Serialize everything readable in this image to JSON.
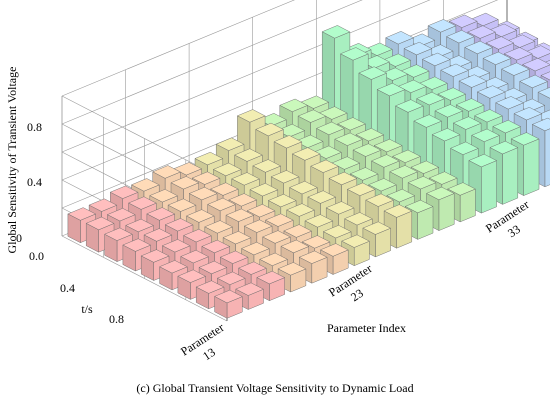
{
  "chart_data": {
    "type": "bar3d",
    "zlabel": "Global Sensitivity of Transient Voltage",
    "xlabel": "Parameter Index",
    "ylabel": "t/s",
    "z_ticks": [
      "0",
      "0.4",
      "0.8"
    ],
    "zlim": [
      0,
      1.0
    ],
    "y_ticks": [
      "0.0",
      "0.4",
      "0.8"
    ],
    "x_ticks": [
      {
        "line1": "Parameter",
        "line2": "13"
      },
      {
        "line1": "Parameter",
        "line2": "23"
      },
      {
        "line1": "Parameter",
        "line2": "33"
      }
    ],
    "parameter_count": 21,
    "time_count": 9,
    "group_colors": [
      "#f7b3b3",
      "#f3cfae",
      "#e4e0a8",
      "#bfeab0",
      "#a8efc0",
      "#b8d8f4",
      "#c6c0f6"
    ],
    "values": [
      [
        0.16,
        0.16,
        0.15,
        0.14,
        0.13,
        0.12,
        0.12,
        0.11,
        0.11
      ],
      [
        0.16,
        0.16,
        0.15,
        0.15,
        0.14,
        0.13,
        0.12,
        0.11,
        0.1
      ],
      [
        0.19,
        0.18,
        0.17,
        0.16,
        0.15,
        0.14,
        0.13,
        0.12,
        0.12
      ],
      [
        0.18,
        0.17,
        0.17,
        0.16,
        0.15,
        0.14,
        0.13,
        0.12,
        0.12
      ],
      [
        0.21,
        0.2,
        0.19,
        0.18,
        0.17,
        0.16,
        0.15,
        0.15,
        0.14
      ],
      [
        0.17,
        0.17,
        0.16,
        0.15,
        0.14,
        0.14,
        0.13,
        0.12,
        0.13
      ],
      [
        0.18,
        0.17,
        0.17,
        0.16,
        0.15,
        0.15,
        0.14,
        0.13,
        0.13
      ],
      [
        0.22,
        0.21,
        0.2,
        0.19,
        0.18,
        0.18,
        0.17,
        0.16,
        0.16
      ],
      [
        0.36,
        0.33,
        0.31,
        0.29,
        0.27,
        0.25,
        0.24,
        0.23,
        0.22
      ],
      [
        0.27,
        0.26,
        0.25,
        0.24,
        0.23,
        0.22,
        0.21,
        0.2,
        0.19
      ],
      [
        0.31,
        0.3,
        0.28,
        0.27,
        0.26,
        0.25,
        0.24,
        0.23,
        0.22
      ],
      [
        0.27,
        0.26,
        0.25,
        0.24,
        0.23,
        0.22,
        0.21,
        0.2,
        0.19
      ],
      [
        0.71,
        0.62,
        0.55,
        0.5,
        0.45,
        0.41,
        0.38,
        0.35,
        0.33
      ],
      [
        0.52,
        0.5,
        0.48,
        0.46,
        0.44,
        0.42,
        0.4,
        0.38,
        0.36
      ],
      [
        0.46,
        0.45,
        0.44,
        0.42,
        0.41,
        0.4,
        0.39,
        0.38,
        0.36
      ],
      [
        0.48,
        0.47,
        0.46,
        0.45,
        0.44,
        0.43,
        0.42,
        0.41,
        0.4
      ],
      [
        0.4,
        0.39,
        0.38,
        0.37,
        0.36,
        0.35,
        0.34,
        0.33,
        0.32
      ],
      [
        0.44,
        0.43,
        0.42,
        0.41,
        0.4,
        0.38,
        0.37,
        0.36,
        0.34
      ],
      [
        0.41,
        0.4,
        0.39,
        0.38,
        0.37,
        0.36,
        0.35,
        0.34,
        0.33
      ],
      [
        0.36,
        0.35,
        0.34,
        0.33,
        0.32,
        0.31,
        0.3,
        0.29,
        0.28
      ],
      [
        0.24,
        0.23,
        0.22,
        0.21,
        0.2,
        0.19,
        0.18,
        0.17,
        0.16
      ]
    ]
  },
  "caption": "(c) Global Transient Voltage Sensitivity to Dynamic Load"
}
